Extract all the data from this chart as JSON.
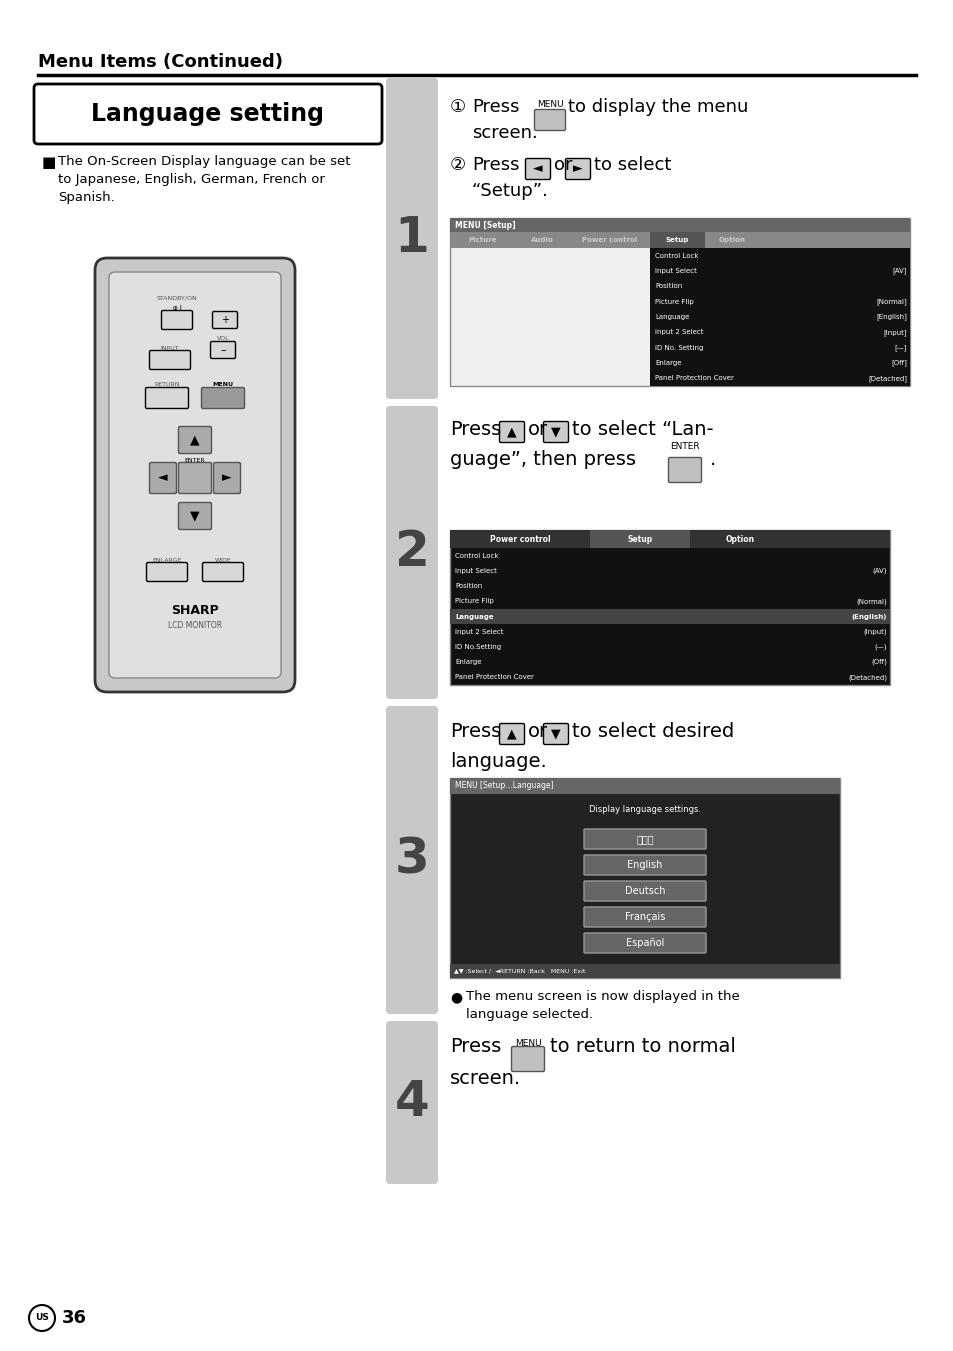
{
  "bg_color": "#ffffff",
  "header_title": "Menu Items (Continued)",
  "section_title": "Language setting",
  "bullet_text": "The On-Screen Display language can be set\nto Japanese, English, German, French or\nSpanish.",
  "page_number": "36",
  "footer_circle": "US",
  "menu_items_1": [
    [
      "Control Lock",
      ""
    ],
    [
      "Input Select",
      "[AV]"
    ],
    [
      "Position",
      ""
    ],
    [
      "Picture Flip",
      "[Normal]"
    ],
    [
      "Language",
      "[English]"
    ],
    [
      "Input 2 Select",
      "[Input]"
    ],
    [
      "ID No. Setting",
      "[—]"
    ],
    [
      "Enlarge",
      "[Off]"
    ],
    [
      "Panel Protection Cover",
      "[Detached]"
    ]
  ],
  "menu_items_2": [
    [
      "Control Lock",
      ""
    ],
    [
      "Input Select",
      "(AV)"
    ],
    [
      "Position",
      ""
    ],
    [
      "Picture Flip",
      "(Normal)"
    ],
    [
      "Language",
      "(English)"
    ],
    [
      "Input 2 Select",
      "(Input)"
    ],
    [
      "ID No.Setting",
      "(—)"
    ],
    [
      "Enlarge",
      "(Off)"
    ],
    [
      "Panel Protection Cover",
      "(Detached)"
    ]
  ],
  "languages": [
    "日本語",
    "English",
    "Deutsch",
    "Français",
    "Español"
  ],
  "bullet2_text": "The menu screen is now displayed in the\nlanguage selected."
}
